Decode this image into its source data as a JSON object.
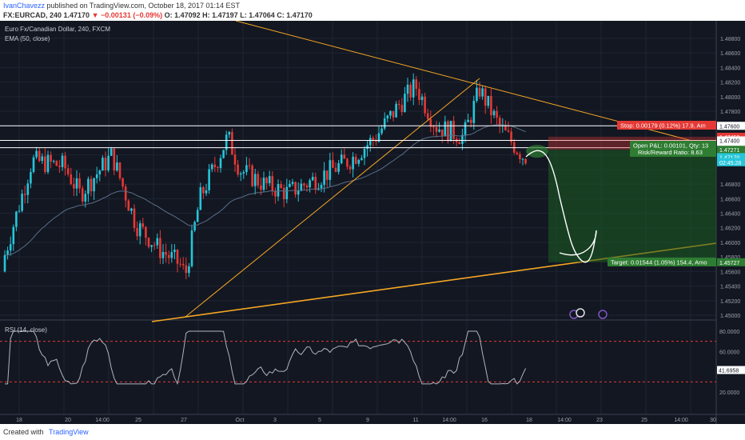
{
  "header": {
    "author": "IvanChavezz",
    "published": "published on TradingView.com, October 18, 2017 01:14 EST",
    "symbol": "FX:EURCAD, 240",
    "last": "1.47170",
    "change": "−0.00131 (−0.09%)",
    "open": "O: 1.47092",
    "high": "H: 1.47197",
    "low": "L: 1.47064",
    "close": "C: 1.47170"
  },
  "chart": {
    "title": "Euro Fx/Canadian Dollar, 240, FXCM",
    "indicator": "EMA (50, close)",
    "rsi_label": "RSI (14, close)",
    "positions": {
      "stop": "Stop: 0.00179 (0.12%) 17.9, Am",
      "open_pl": "Open P&L: 0.00101, Qty: 13",
      "risk_reward": "Risk/Reward Ratio: 8.63",
      "target": "Target: 0.01544 (1.05%) 154.4, Amo"
    },
    "price_ticks": [
      "1.48800",
      "1.48600",
      "1.48400",
      "1.48200",
      "1.48000",
      "1.47800",
      "1.47600",
      "1.47400",
      "1.47200",
      "1.46800",
      "1.46600",
      "1.46400",
      "1.46200",
      "1.46000",
      "1.45800",
      "1.45600",
      "1.45400",
      "1.45200",
      "1.45000"
    ],
    "price_ticks_values": [
      1.488,
      1.486,
      1.484,
      1.482,
      1.48,
      1.478,
      1.476,
      1.474,
      1.472,
      1.468,
      1.466,
      1.464,
      1.462,
      1.46,
      1.458,
      1.456,
      1.454,
      1.452,
      1.45
    ],
    "price_labels": [
      {
        "text": "1.47600",
        "value": 1.476,
        "bg": "#ffffff",
        "fg": "#131722"
      },
      {
        "text": "1.47450",
        "value": 1.4745,
        "bg": "#e53935",
        "fg": "#ffffff"
      },
      {
        "text": "1.47400",
        "value": 1.474,
        "bg": "#ffffff",
        "fg": "#131722"
      },
      {
        "text": "1.47300",
        "value": 1.473,
        "bg": "#ffffff",
        "fg": "#131722"
      },
      {
        "text": "1.47271",
        "value": 1.47271,
        "bg": "#2e7d32",
        "fg": "#ffffff"
      },
      {
        "text": "1.47170",
        "value": 1.4717,
        "bg": "#26c6da",
        "fg": "#ffffff"
      },
      {
        "text": "02:45:28",
        "value": 1.471,
        "bg": "#26c6da",
        "fg": "#ffffff"
      },
      {
        "text": "1.45727",
        "value": 1.45727,
        "bg": "#2e7d32",
        "fg": "#ffffff"
      }
    ],
    "rsi_ticks": [
      "80.0000",
      "60.0000",
      "40.0000",
      "20.0000"
    ],
    "rsi_ticks_values": [
      80,
      60,
      40,
      20
    ],
    "rsi_current": "41.6958",
    "time_ticks": [
      "18",
      "20",
      "14:00",
      "25",
      "27",
      "Oct",
      "3",
      "5",
      "9",
      "11",
      "14:00",
      "16",
      "18",
      "14:00",
      "23",
      "25",
      "14:00",
      "30"
    ],
    "colors": {
      "up": "#26c6da",
      "down": "#e53935",
      "ema": "#5a6e86",
      "trend": "#f5a623",
      "rsi": "#b0b4bc"
    }
  },
  "footer": {
    "created_with": "Created with",
    "brand": "TradingView"
  }
}
